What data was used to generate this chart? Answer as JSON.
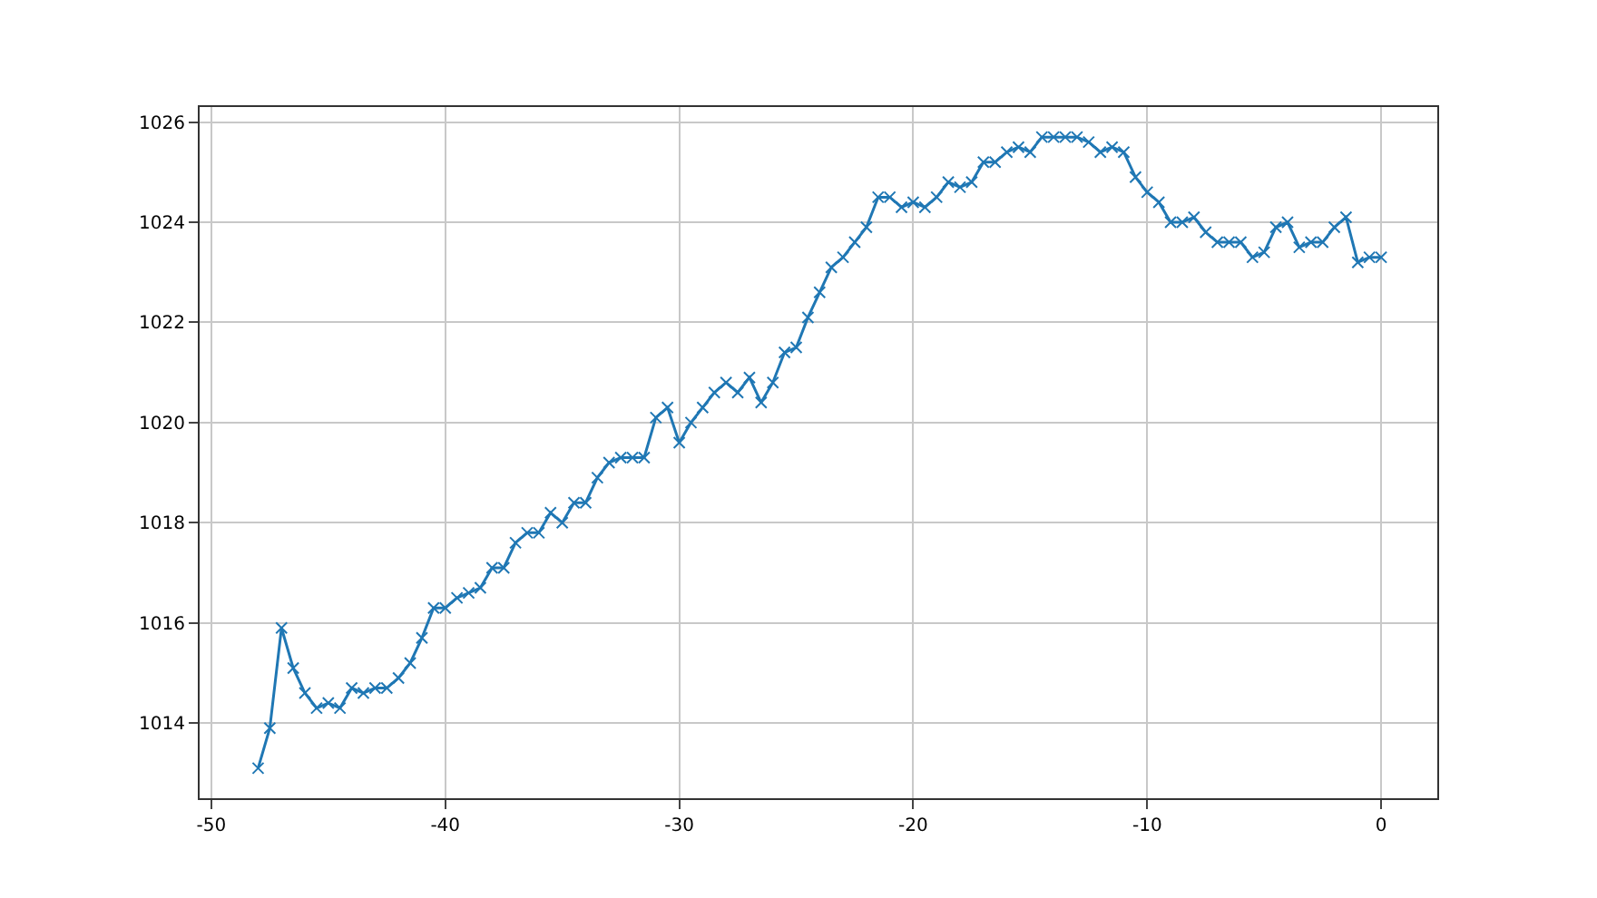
{
  "chart_data": {
    "type": "line",
    "x": [
      -48,
      -47.5,
      -47,
      -46.5,
      -46,
      -45.5,
      -45,
      -44.5,
      -44,
      -43.5,
      -43,
      -42.5,
      -42,
      -41.5,
      -41,
      -40.5,
      -40,
      -39.5,
      -39,
      -38.5,
      -38,
      -37.5,
      -37,
      -36.5,
      -36,
      -35.5,
      -35,
      -34.5,
      -34,
      -33.5,
      -33,
      -32.5,
      -32,
      -31.5,
      -31,
      -30.5,
      -30,
      -29.5,
      -29,
      -28.5,
      -28,
      -27.5,
      -27,
      -26.5,
      -26,
      -25.5,
      -25,
      -24.5,
      -24,
      -23.5,
      -23,
      -22.5,
      -22,
      -21.5,
      -21,
      -20.5,
      -20,
      -19.5,
      -19,
      -18.5,
      -18,
      -17.5,
      -17,
      -16.5,
      -16,
      -15.5,
      -15,
      -14.5,
      -14,
      -13.5,
      -13,
      -12.5,
      -12,
      -11.5,
      -11,
      -10.5,
      -10,
      -9.5,
      -9,
      -8.5,
      -8,
      -7.5,
      -7,
      -6.5,
      -6,
      -5.5,
      -5,
      -4.5,
      -4,
      -3.5,
      -3,
      -2.5,
      -2,
      -1.5,
      -1,
      -0.5,
      0
    ],
    "series": [
      {
        "color": "#1f77b4",
        "values": [
          1013.1,
          1013.9,
          1015.9,
          1015.1,
          1014.6,
          1014.3,
          1014.4,
          1014.3,
          1014.7,
          1014.6,
          1014.7,
          1014.7,
          1014.9,
          1015.2,
          1015.7,
          1016.3,
          1016.3,
          1016.5,
          1016.6,
          1016.7,
          1017.1,
          1017.1,
          1017.6,
          1017.8,
          1017.8,
          1018.2,
          1018.0,
          1018.4,
          1018.4,
          1018.9,
          1019.2,
          1019.3,
          1019.3,
          1019.3,
          1020.1,
          1020.3,
          1019.6,
          1020.0,
          1020.3,
          1020.6,
          1020.8,
          1020.6,
          1020.9,
          1020.4,
          1020.8,
          1021.4,
          1021.5,
          1022.1,
          1022.6,
          1023.1,
          1023.3,
          1023.6,
          1023.9,
          1024.5,
          1024.5,
          1024.3,
          1024.4,
          1024.3,
          1024.5,
          1024.8,
          1024.7,
          1024.8,
          1025.2,
          1025.2,
          1025.4,
          1025.5,
          1025.4,
          1025.7,
          1025.7,
          1025.7,
          1025.7,
          1025.6,
          1025.4,
          1025.5,
          1025.4,
          1024.9,
          1024.6,
          1024.4,
          1024.0,
          1024.0,
          1024.1,
          1023.8,
          1023.6,
          1023.6,
          1023.6,
          1023.3,
          1023.4,
          1023.9,
          1024.0,
          1023.5,
          1023.6,
          1023.6,
          1023.9,
          1024.1,
          1023.2,
          1023.3,
          1023.3
        ]
      }
    ],
    "xlim": [
      -50.5,
      2.4
    ],
    "ylim": [
      1012.5,
      1026.3
    ],
    "xticks": [
      -50,
      -40,
      -30,
      -20,
      -10,
      0
    ],
    "yticks": [
      1014,
      1016,
      1018,
      1020,
      1022,
      1024,
      1026
    ],
    "grid": true,
    "marker": "cross",
    "line_style": "solid"
  }
}
